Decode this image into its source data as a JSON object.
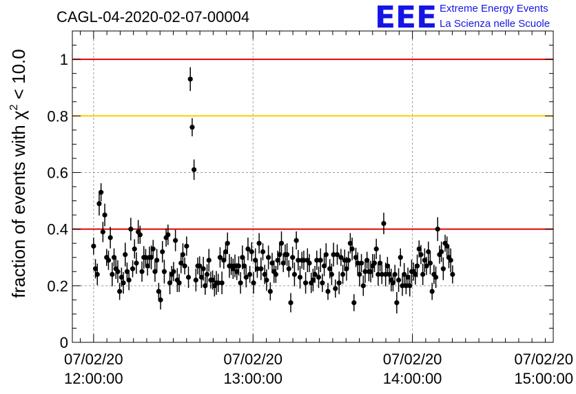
{
  "logo": {
    "mark": "EEE",
    "line1": "Extreme Energy Events",
    "line2": "La Scienza nelle Scuole"
  },
  "chart_data": {
    "type": "scatter",
    "title": "CAGL-04-2020-02-07-00004",
    "ylabel_prefix": "fraction of events with χ",
    "ylabel_sup": "2",
    "ylabel_suffix": " < 10.0",
    "xlabel": "",
    "ylim": [
      0,
      1.1
    ],
    "xlim_minutes": [
      -8,
      173
    ],
    "yticks": [
      "0",
      "0.2",
      "0.4",
      "0.6",
      "0.8",
      "1"
    ],
    "xticks": [
      {
        "date": "07/02/20",
        "time": "12:00:00"
      },
      {
        "date": "07/02/20",
        "time": "13:00:00"
      },
      {
        "date": "07/02/20",
        "time": "14:00:00"
      },
      {
        "date": "07/02/20",
        "time": "15:00:00"
      }
    ],
    "grid": true,
    "reference_lines": [
      {
        "y": 1.0,
        "color": "#e00000"
      },
      {
        "y": 0.8,
        "color": "#ffcc00"
      },
      {
        "y": 0.4,
        "color": "#e00000"
      }
    ],
    "marker_color": "#000000",
    "series": [
      {
        "x_start": "07/02/20 11:52:00",
        "x_step_minutes": 0.7,
        "values": [
          0.34,
          0.26,
          0.24,
          0.49,
          0.53,
          0.39,
          0.45,
          0.3,
          0.29,
          0.37,
          0.24,
          0.3,
          0.26,
          0.25,
          0.18,
          0.23,
          0.21,
          0.31,
          0.25,
          0.22,
          0.4,
          0.26,
          0.33,
          0.28,
          0.39,
          0.38,
          0.25,
          0.3,
          0.3,
          0.27,
          0.3,
          0.3,
          0.33,
          0.25,
          0.29,
          0.18,
          0.15,
          0.32,
          0.25,
          0.37,
          0.38,
          0.21,
          0.24,
          0.25,
          0.36,
          0.22,
          0.21,
          0.28,
          0.31,
          0.27,
          0.34,
          0.23,
          0.93,
          0.76,
          0.61,
          0.22,
          0.27,
          0.27,
          0.23,
          0.26,
          0.2,
          0.24,
          0.29,
          0.22,
          0.22,
          0.2,
          0.21,
          0.21,
          0.3,
          0.21,
          0.29,
          0.32,
          0.35,
          0.27,
          0.27,
          0.26,
          0.27,
          0.25,
          0.27,
          0.21,
          0.3,
          0.27,
          0.23,
          0.33,
          0.24,
          0.32,
          0.21,
          0.29,
          0.26,
          0.35,
          0.26,
          0.32,
          0.24,
          0.22,
          0.3,
          0.18,
          0.28,
          0.25,
          0.24,
          0.29,
          0.31,
          0.35,
          0.28,
          0.31,
          0.31,
          0.26,
          0.14,
          0.3,
          0.24,
          0.36,
          0.29,
          0.23,
          0.29,
          0.29,
          0.21,
          0.29,
          0.28,
          0.21,
          0.22,
          0.24,
          0.29,
          0.23,
          0.29,
          0.21,
          0.27,
          0.31,
          0.18,
          0.26,
          0.24,
          0.31,
          0.19,
          0.31,
          0.21,
          0.3,
          0.24,
          0.29,
          0.26,
          0.29,
          0.35,
          0.33,
          0.14,
          0.3,
          0.28,
          0.24,
          0.28,
          0.2,
          0.25,
          0.29,
          0.25,
          0.25,
          0.27,
          0.28,
          0.33,
          0.24,
          0.28,
          0.24,
          0.42,
          0.24,
          0.27,
          0.24,
          0.22,
          0.21,
          0.24,
          0.14,
          0.22,
          0.3,
          0.2,
          0.24,
          0.2,
          0.23,
          0.2,
          0.25,
          0.25,
          0.24,
          0.27,
          0.33,
          0.31,
          0.24,
          0.29,
          0.27,
          0.32,
          0.28,
          0.18,
          0.24,
          0.23,
          0.4,
          0.31,
          0.32,
          0.26,
          0.35,
          0.34,
          0.3,
          0.29,
          0.24
        ]
      }
    ]
  }
}
